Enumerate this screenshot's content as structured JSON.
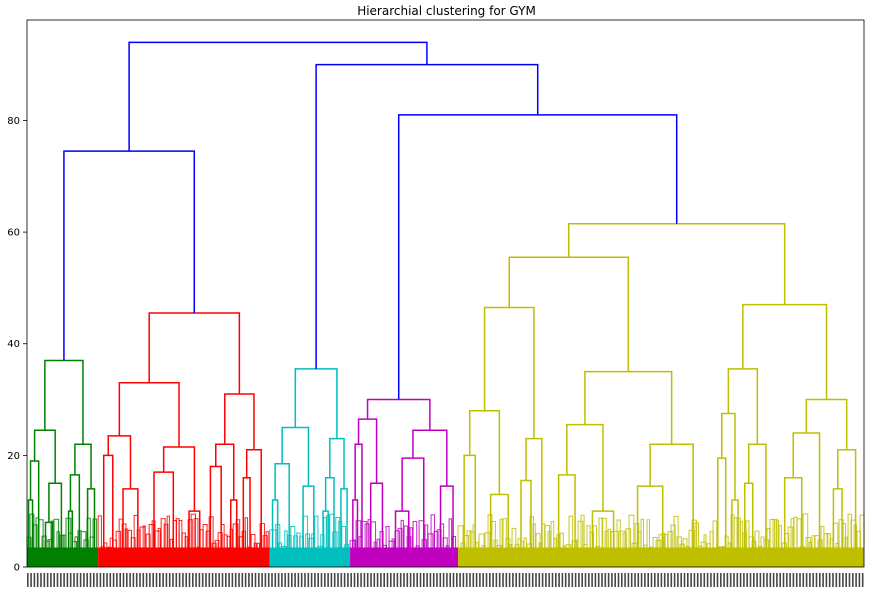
{
  "chart_data": {
    "type": "dendrogram",
    "title": "Hierarchial clustering for GYM",
    "xlabel": "",
    "ylabel": "",
    "ylim": [
      0,
      98
    ],
    "yticks": [
      0,
      20,
      40,
      60,
      80
    ],
    "grid": false,
    "legend": "none",
    "clusters": [
      {
        "color": "#008000",
        "leaf_span": [
          0.0,
          0.085
        ],
        "internal_merges": [
          37.0,
          24.5,
          22.0,
          19.0,
          16.5,
          15.0,
          14.0,
          12.0,
          10.0,
          8.0
        ]
      },
      {
        "color": "#ff0000",
        "leaf_span": [
          0.085,
          0.29
        ],
        "internal_merges": [
          45.5,
          33.0,
          31.0,
          23.5,
          22.0,
          21.5,
          21.0,
          20.0,
          18.0,
          17.0,
          16.0,
          14.0,
          12.0,
          10.0
        ]
      },
      {
        "color": "#00bfbf",
        "leaf_span": [
          0.29,
          0.386
        ],
        "internal_merges": [
          35.5,
          25.0,
          23.0,
          18.5,
          16.0,
          14.5,
          14.0,
          12.0,
          10.0
        ]
      },
      {
        "color": "#bf00bf",
        "leaf_span": [
          0.386,
          0.515
        ],
        "internal_merges": [
          30.0,
          26.5,
          24.5,
          22.0,
          19.5,
          15.0,
          14.5,
          12.0,
          10.0
        ]
      },
      {
        "color": "#bfbf00",
        "leaf_span": [
          0.515,
          1.0
        ],
        "internal_merges": [
          61.5,
          55.5,
          47.0,
          46.5,
          35.5,
          35.0,
          30.0,
          28.0,
          27.5,
          25.5,
          24.0,
          23.0,
          22.0,
          22.0,
          21.0,
          20.0,
          19.5,
          16.5,
          16.0,
          15.5,
          15.0,
          14.5,
          14.0,
          13.0,
          12.0,
          10.0
        ]
      }
    ],
    "top_merges": [
      {
        "join": "clusters 1-2",
        "height": 74.5
      },
      {
        "join": "clusters 4-5",
        "height": 81.0
      },
      {
        "join": "cluster 3 + (4-5)",
        "height": 90.0
      },
      {
        "join": "root",
        "height": 94.0
      }
    ],
    "above_threshold_color": "#0000ff",
    "x_tick_labels": "dense overlapping leaf labels (illegible)"
  }
}
